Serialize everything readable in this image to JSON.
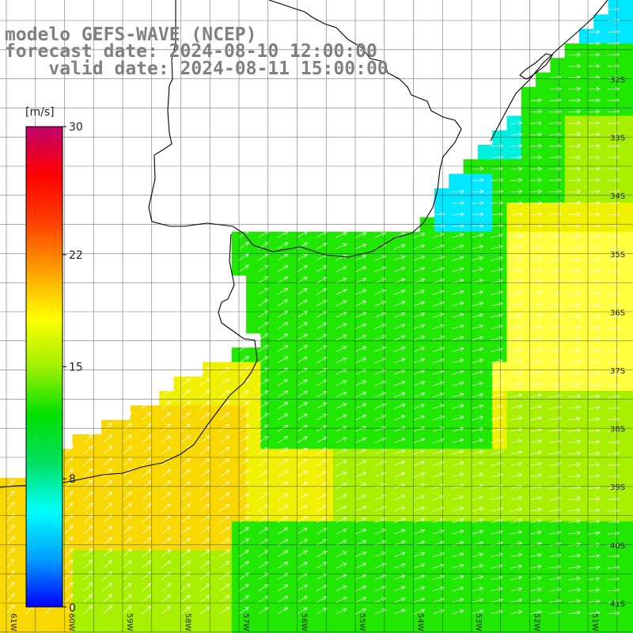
{
  "header": {
    "model_line": "modelo GEFS-WAVE (NCEP)",
    "forecast_line": "forecast date: 2024-08-10 12:00:00",
    "valid_line": "    valid date: 2024-08-11 15:00:00"
  },
  "colorbar": {
    "unit": "[m/s]",
    "ticks": [
      "30",
      "22",
      "15",
      "8",
      "0"
    ],
    "tick_values": [
      30,
      22,
      15,
      8,
      0
    ],
    "range": [
      0,
      30
    ],
    "colors": [
      "#0000ff",
      "#00a0ff",
      "#00ffff",
      "#00e060",
      "#00e000",
      "#a0f000",
      "#ffff00",
      "#ffa000",
      "#ff4000",
      "#ff0000",
      "#c0006c"
    ]
  },
  "map": {
    "lat_labels": [
      "32S",
      "33S",
      "34S",
      "35S",
      "36S",
      "37S",
      "38S",
      "39S",
      "40S",
      "41S"
    ],
    "lat_values": [
      -32,
      -33,
      -34,
      -35,
      -36,
      -37,
      -38,
      -39,
      -40,
      -41
    ],
    "lon_labels": [
      "61W",
      "60W",
      "59W",
      "58W",
      "57W",
      "56W",
      "55W",
      "54W",
      "53W",
      "52W",
      "51W"
    ],
    "lon_values": [
      -61,
      -60,
      -59,
      -58,
      -57,
      -56,
      -55,
      -54,
      -53,
      -52,
      -51
    ],
    "ocean_colors": {
      "yellow": "#f0f000",
      "light_yellow": "#ffff40",
      "orange_yellow": "#f8d800",
      "yellow_green": "#a8f000",
      "green": "#20e800",
      "cyan": "#00f0e0",
      "light_cyan": "#00e8ff"
    }
  }
}
